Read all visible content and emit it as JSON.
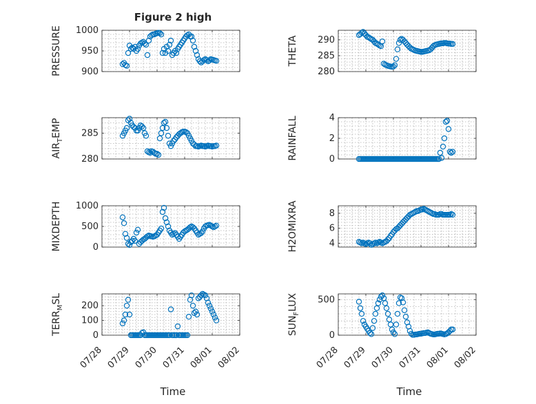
{
  "chart_data": [
    {
      "type": "scatter",
      "title": "Figure 2 high",
      "ylabel": "PRESSURE",
      "ylim": [
        900,
        1000
      ],
      "yticks": [
        900,
        950,
        1000
      ],
      "x": [
        28.75,
        28.8,
        28.85,
        28.9,
        28.95,
        29.0,
        29.05,
        29.1,
        29.15,
        29.2,
        29.25,
        29.3,
        29.35,
        29.4,
        29.45,
        29.5,
        29.55,
        29.6,
        29.65,
        29.7,
        29.75,
        29.8,
        29.85,
        29.9,
        29.95,
        30.0,
        30.05,
        30.1,
        30.15,
        30.2,
        30.25,
        30.3,
        30.35,
        30.4,
        30.45,
        30.5,
        30.55,
        30.6,
        30.65,
        30.7,
        30.75,
        30.8,
        30.85,
        30.9,
        30.95,
        31.0,
        31.05,
        31.1,
        31.15,
        31.2,
        31.25,
        31.3,
        31.35,
        31.4,
        31.45,
        31.5,
        31.55,
        31.6,
        31.65,
        31.7,
        31.75,
        31.8,
        31.85,
        31.9,
        31.95,
        32.0,
        32.05,
        32.1,
        32.15
      ],
      "y": [
        918,
        921,
        916,
        914,
        945,
        963,
        955,
        958,
        955,
        960,
        950,
        955,
        963,
        968,
        970,
        972,
        968,
        965,
        940,
        975,
        985,
        988,
        990,
        990,
        992,
        993,
        994,
        993,
        990,
        945,
        955,
        945,
        960,
        950,
        965,
        975,
        940,
        945,
        950,
        945,
        955,
        960,
        965,
        970,
        975,
        980,
        985,
        988,
        990,
        985,
        985,
        975,
        960,
        950,
        940,
        930,
        925,
        922,
        925,
        928,
        930,
        928,
        925,
        927,
        930,
        929,
        928,
        927,
        926
      ]
    },
    {
      "type": "scatter",
      "ylabel": "THETA",
      "ylim": [
        280,
        293
      ],
      "yticks": [
        280,
        285,
        290
      ],
      "x": [
        28.75,
        28.8,
        28.85,
        28.9,
        28.95,
        29.0,
        29.05,
        29.1,
        29.15,
        29.2,
        29.25,
        29.3,
        29.35,
        29.4,
        29.45,
        29.5,
        29.55,
        29.6,
        29.65,
        29.7,
        29.75,
        29.8,
        29.85,
        29.9,
        29.95,
        30.0,
        30.05,
        30.1,
        30.15,
        30.2,
        30.25,
        30.3,
        30.35,
        30.4,
        30.45,
        30.5,
        30.55,
        30.6,
        30.65,
        30.7,
        30.75,
        30.8,
        30.85,
        30.9,
        30.95,
        31.0,
        31.05,
        31.1,
        31.15,
        31.2,
        31.25,
        31.3,
        31.35,
        31.4,
        31.45,
        31.5,
        31.55,
        31.6,
        31.65,
        31.7,
        31.75,
        31.8,
        31.85,
        31.9,
        31.95,
        32.0,
        32.05,
        32.1,
        32.15
      ],
      "y": [
        291.5,
        291.8,
        292.2,
        292.5,
        292.0,
        291.5,
        291.0,
        290.8,
        290.5,
        290.2,
        290.0,
        289.5,
        289.0,
        288.8,
        288.5,
        288.2,
        288.0,
        289.5,
        282.5,
        282.2,
        282.0,
        281.8,
        281.7,
        281.6,
        281.5,
        281.6,
        282.0,
        284.0,
        287.0,
        289.0,
        290.0,
        290.3,
        290.0,
        289.5,
        289.0,
        288.5,
        288.0,
        287.6,
        287.2,
        287.0,
        286.8,
        286.6,
        286.5,
        286.4,
        286.3,
        286.2,
        286.2,
        286.3,
        286.4,
        286.5,
        286.6,
        286.7,
        287.0,
        287.5,
        288.0,
        288.3,
        288.5,
        288.6,
        288.7,
        288.8,
        288.9,
        288.9,
        289.0,
        289.0,
        288.9,
        288.8,
        288.8,
        288.7,
        288.7
      ]
    },
    {
      "type": "scatter",
      "ylabel": "AIR_TEMP",
      "ylim": [
        280,
        288
      ],
      "yticks": [
        280,
        285
      ],
      "x": [
        28.75,
        28.8,
        28.85,
        28.9,
        28.95,
        29.0,
        29.05,
        29.1,
        29.15,
        29.2,
        29.25,
        29.3,
        29.35,
        29.4,
        29.45,
        29.5,
        29.55,
        29.6,
        29.65,
        29.7,
        29.75,
        29.8,
        29.85,
        29.9,
        29.95,
        30.0,
        30.05,
        30.1,
        30.15,
        30.2,
        30.25,
        30.3,
        30.35,
        30.4,
        30.45,
        30.5,
        30.55,
        30.6,
        30.65,
        30.7,
        30.75,
        30.8,
        30.85,
        30.9,
        30.95,
        31.0,
        31.05,
        31.1,
        31.15,
        31.2,
        31.25,
        31.3,
        31.35,
        31.4,
        31.45,
        31.5,
        31.55,
        31.6,
        31.65,
        31.7,
        31.75,
        31.8,
        31.85,
        31.9,
        31.95,
        32.0,
        32.05,
        32.1,
        32.15
      ],
      "y": [
        284.5,
        285.0,
        285.5,
        286.0,
        287.5,
        287.8,
        287.0,
        286.5,
        286.2,
        286.0,
        285.5,
        285.5,
        286.0,
        286.5,
        286.3,
        286.0,
        285.0,
        284.5,
        281.5,
        281.3,
        281.2,
        281.5,
        281.4,
        281.2,
        281.0,
        281.0,
        280.8,
        284.0,
        285.0,
        286.0,
        287.0,
        287.2,
        286.0,
        284.5,
        283.0,
        282.5,
        283.0,
        283.5,
        283.8,
        284.2,
        284.5,
        284.8,
        285.0,
        285.2,
        285.3,
        285.3,
        285.2,
        285.0,
        284.5,
        284.0,
        283.5,
        283.0,
        282.8,
        282.5,
        282.5,
        282.4,
        282.5,
        282.6,
        282.5,
        282.5,
        282.4,
        282.5,
        282.6,
        282.5,
        282.5,
        282.4,
        282.5,
        282.5,
        282.6
      ]
    },
    {
      "type": "scatter",
      "ylabel": "RAINFALL",
      "ylim": [
        0,
        4
      ],
      "yticks": [
        0,
        2,
        4
      ],
      "x": [
        28.75,
        28.8,
        28.85,
        28.9,
        28.95,
        29.0,
        29.05,
        29.1,
        29.15,
        29.2,
        29.25,
        29.3,
        29.35,
        29.4,
        29.45,
        29.5,
        29.55,
        29.6,
        29.65,
        29.7,
        29.75,
        29.8,
        29.85,
        29.9,
        29.95,
        30.0,
        30.05,
        30.1,
        30.15,
        30.2,
        30.25,
        30.3,
        30.35,
        30.4,
        30.45,
        30.5,
        30.55,
        30.6,
        30.65,
        30.7,
        30.75,
        30.8,
        30.85,
        30.9,
        30.95,
        31.0,
        31.05,
        31.1,
        31.15,
        31.2,
        31.25,
        31.3,
        31.35,
        31.4,
        31.45,
        31.5,
        31.55,
        31.6,
        31.65,
        31.7,
        31.75,
        31.8,
        31.85,
        31.9,
        31.95,
        32.0,
        32.05,
        32.1,
        32.15
      ],
      "y": [
        0,
        0,
        0,
        0,
        0,
        0,
        0,
        0,
        0,
        0,
        0,
        0,
        0,
        0,
        0,
        0,
        0,
        0,
        0,
        0,
        0,
        0,
        0,
        0,
        0,
        0,
        0,
        0,
        0,
        0,
        0,
        0,
        0,
        0,
        0,
        0,
        0,
        0,
        0,
        0,
        0,
        0,
        0,
        0,
        0,
        0,
        0,
        0,
        0,
        0,
        0,
        0,
        0,
        0,
        0,
        0,
        0,
        0,
        0,
        0.6,
        0.1,
        1.2,
        2.0,
        3.6,
        3.7,
        2.9,
        0.7,
        0.6,
        0.7
      ]
    },
    {
      "type": "scatter",
      "ylabel": "MIXDEPTH",
      "ylim": [
        0,
        1000
      ],
      "yticks": [
        0,
        500,
        1000
      ],
      "x": [
        28.75,
        28.8,
        28.85,
        28.9,
        28.95,
        29.0,
        29.05,
        29.1,
        29.15,
        29.2,
        29.25,
        29.3,
        29.35,
        29.4,
        29.45,
        29.5,
        29.55,
        29.6,
        29.65,
        29.7,
        29.75,
        29.8,
        29.85,
        29.9,
        29.95,
        30.0,
        30.05,
        30.1,
        30.15,
        30.2,
        30.25,
        30.3,
        30.35,
        30.4,
        30.45,
        30.5,
        30.55,
        30.6,
        30.65,
        30.7,
        30.75,
        30.8,
        30.85,
        30.9,
        30.95,
        31.0,
        31.05,
        31.1,
        31.15,
        31.2,
        31.25,
        31.3,
        31.35,
        31.4,
        31.45,
        31.5,
        31.55,
        31.6,
        31.65,
        31.7,
        31.75,
        31.8,
        31.85,
        31.9,
        31.95,
        32.0,
        32.05,
        32.1,
        32.15
      ],
      "y": [
        720,
        580,
        320,
        220,
        80,
        50,
        120,
        150,
        200,
        150,
        350,
        420,
        80,
        120,
        150,
        180,
        200,
        230,
        260,
        280,
        270,
        260,
        250,
        260,
        280,
        300,
        350,
        400,
        450,
        850,
        950,
        700,
        600,
        500,
        400,
        350,
        300,
        320,
        340,
        300,
        250,
        200,
        250,
        300,
        350,
        380,
        400,
        420,
        450,
        480,
        500,
        480,
        450,
        400,
        350,
        300,
        320,
        340,
        380,
        450,
        500,
        520,
        530,
        540,
        520,
        500,
        480,
        500,
        520
      ]
    },
    {
      "type": "scatter",
      "ylabel": "H2OMIXRA",
      "ylim": [
        3.5,
        9
      ],
      "yticks": [
        4,
        6,
        8
      ],
      "x": [
        28.75,
        28.8,
        28.85,
        28.9,
        28.95,
        29.0,
        29.05,
        29.1,
        29.15,
        29.2,
        29.25,
        29.3,
        29.35,
        29.4,
        29.45,
        29.5,
        29.55,
        29.6,
        29.65,
        29.7,
        29.75,
        29.8,
        29.85,
        29.9,
        29.95,
        30.0,
        30.05,
        30.1,
        30.15,
        30.2,
        30.25,
        30.3,
        30.35,
        30.4,
        30.45,
        30.5,
        30.55,
        30.6,
        30.65,
        30.7,
        30.75,
        30.8,
        30.85,
        30.9,
        30.95,
        31.0,
        31.05,
        31.1,
        31.15,
        31.2,
        31.25,
        31.3,
        31.35,
        31.4,
        31.45,
        31.5,
        31.55,
        31.6,
        31.65,
        31.7,
        31.75,
        31.8,
        31.85,
        31.9,
        31.95,
        32.0,
        32.05,
        32.1,
        32.15
      ],
      "y": [
        4.2,
        4.1,
        4.0,
        4.1,
        4.0,
        3.9,
        4.0,
        4.1,
        4.0,
        3.8,
        3.9,
        4.0,
        4.1,
        4.0,
        4.1,
        4.2,
        4.1,
        4.0,
        4.1,
        4.2,
        4.3,
        4.5,
        4.7,
        5.0,
        5.2,
        5.5,
        5.7,
        5.9,
        6.0,
        6.2,
        6.4,
        6.6,
        6.8,
        7.0,
        7.2,
        7.4,
        7.6,
        7.8,
        7.9,
        8.0,
        8.1,
        8.2,
        8.3,
        8.3,
        8.4,
        8.5,
        8.5,
        8.6,
        8.5,
        8.4,
        8.3,
        8.2,
        8.1,
        8.0,
        7.9,
        7.9,
        7.8,
        7.8,
        7.8,
        7.9,
        7.9,
        7.8,
        7.8,
        7.8,
        7.8,
        7.8,
        7.8,
        7.9,
        7.8
      ]
    },
    {
      "type": "scatter",
      "ylabel": "TERR_MSL",
      "ylim": [
        0,
        280
      ],
      "yticks": [
        0,
        100,
        200
      ],
      "x": [
        28.75,
        28.8,
        28.85,
        28.9,
        28.95,
        29.0,
        29.05,
        29.1,
        29.15,
        29.2,
        29.25,
        29.3,
        29.35,
        29.4,
        29.45,
        29.5,
        29.55,
        29.6,
        29.65,
        29.7,
        29.75,
        29.8,
        29.85,
        29.9,
        29.95,
        30.0,
        30.05,
        30.1,
        30.15,
        30.2,
        30.25,
        30.3,
        30.35,
        30.4,
        30.45,
        30.5,
        30.55,
        30.6,
        30.65,
        30.7,
        30.75,
        30.8,
        30.85,
        30.9,
        30.95,
        31.0,
        31.05,
        31.1,
        31.15,
        31.2,
        31.25,
        31.3,
        31.35,
        31.4,
        31.45,
        31.5,
        31.55,
        31.6,
        31.65,
        31.7,
        31.75,
        31.8,
        31.85,
        31.9,
        31.95,
        32.0,
        32.05,
        32.1,
        32.15
      ],
      "y": [
        80,
        100,
        140,
        200,
        240,
        140,
        0,
        0,
        0,
        0,
        0,
        0,
        0,
        0,
        15,
        20,
        0,
        0,
        0,
        0,
        0,
        0,
        0,
        0,
        0,
        0,
        0,
        0,
        0,
        0,
        0,
        0,
        0,
        0,
        0,
        175,
        0,
        0,
        0,
        0,
        60,
        0,
        0,
        0,
        0,
        0,
        0,
        0,
        125,
        240,
        270,
        200,
        150,
        160,
        140,
        250,
        260,
        270,
        280,
        275,
        270,
        250,
        220,
        200,
        180,
        160,
        140,
        120,
        100
      ]
    },
    {
      "type": "scatter",
      "ylabel": "SUN_FLUX",
      "ylim": [
        0,
        580
      ],
      "yticks": [
        0,
        500
      ],
      "x": [
        28.75,
        28.8,
        28.85,
        28.9,
        28.95,
        29.0,
        29.05,
        29.1,
        29.15,
        29.2,
        29.25,
        29.3,
        29.35,
        29.4,
        29.45,
        29.5,
        29.55,
        29.6,
        29.65,
        29.7,
        29.75,
        29.8,
        29.85,
        29.9,
        29.95,
        30.0,
        30.05,
        30.1,
        30.15,
        30.2,
        30.25,
        30.3,
        30.35,
        30.4,
        30.45,
        30.5,
        30.55,
        30.6,
        30.65,
        30.7,
        30.75,
        30.8,
        30.85,
        30.9,
        30.95,
        31.0,
        31.05,
        31.1,
        31.15,
        31.2,
        31.25,
        31.3,
        31.35,
        31.4,
        31.45,
        31.5,
        31.55,
        31.6,
        31.65,
        31.7,
        31.75,
        31.8,
        31.85,
        31.9,
        31.95,
        32.0,
        32.05,
        32.1,
        32.15
      ],
      "y": [
        470,
        380,
        300,
        200,
        150,
        120,
        90,
        60,
        30,
        15,
        100,
        200,
        300,
        380,
        450,
        500,
        540,
        560,
        520,
        450,
        380,
        300,
        220,
        150,
        80,
        40,
        15,
        150,
        300,
        450,
        530,
        520,
        460,
        350,
        260,
        180,
        120,
        60,
        20,
        5,
        5,
        10,
        10,
        15,
        20,
        20,
        25,
        30,
        30,
        35,
        40,
        30,
        20,
        15,
        10,
        10,
        15,
        20,
        20,
        25,
        20,
        15,
        10,
        15,
        25,
        40,
        60,
        80,
        80
      ]
    }
  ],
  "axes": {
    "xticks": [
      "07/28",
      "07/29",
      "07/30",
      "07/31",
      "08/01",
      "08/02"
    ],
    "xlabel": "Time"
  }
}
